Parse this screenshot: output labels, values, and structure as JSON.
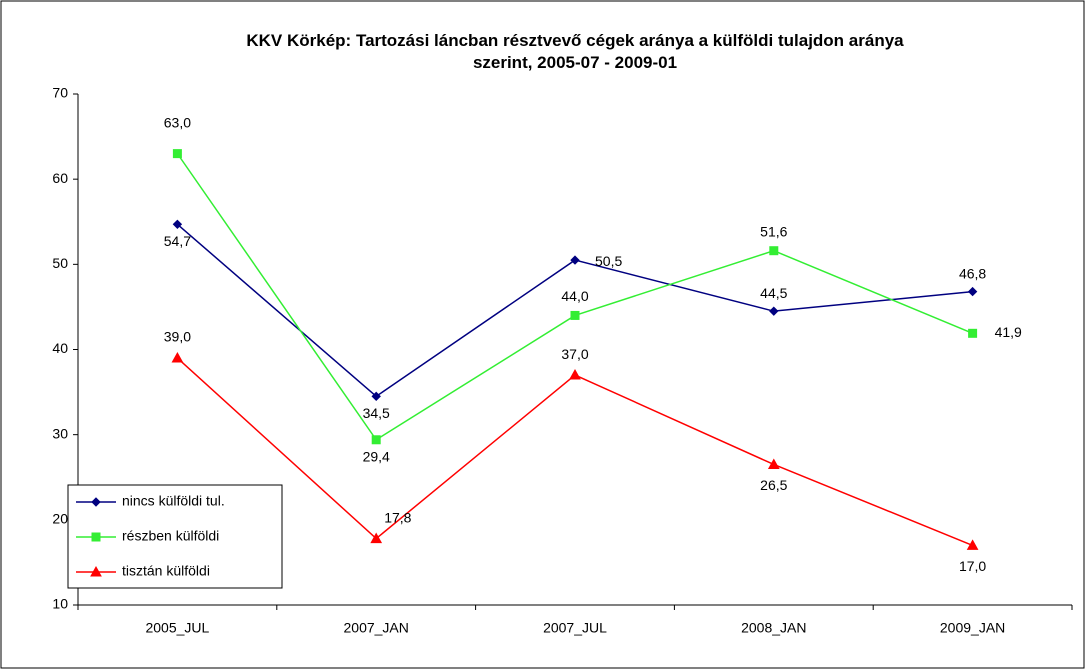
{
  "chart_data": {
    "type": "line",
    "title": "KKV Körkép: Tartozási láncban résztvevő cégek aránya a külföldi tulajdon aránya szerint, 2005-07 - 2009-01",
    "categories": [
      "2005_JUL",
      "2007_JAN",
      "2007_JUL",
      "2008_JAN",
      "2009_JAN"
    ],
    "series": [
      {
        "name": "nincs külföldi tul.",
        "color": "#000080",
        "marker": "diamond",
        "values": [
          54.7,
          34.5,
          50.5,
          44.5,
          46.8
        ],
        "value_labels": [
          "54,7",
          "34,5",
          "50,5",
          "44,5",
          "46,8"
        ]
      },
      {
        "name": "részben külföldi",
        "color": "#33ee33",
        "marker": "square",
        "values": [
          63.0,
          29.4,
          44.0,
          51.6,
          41.9
        ],
        "value_labels": [
          "63,0",
          "29,4",
          "44,0",
          "51,6",
          "41,9"
        ]
      },
      {
        "name": "tisztán külföldi",
        "color": "#ff0000",
        "marker": "triangle",
        "values": [
          39.0,
          17.8,
          37.0,
          26.5,
          17.0
        ],
        "value_labels": [
          "39,0",
          "17,8",
          "37,0",
          "26,5",
          "17,0"
        ]
      }
    ],
    "ylim": [
      10,
      70
    ],
    "yticks": [
      10,
      20,
      30,
      40,
      50,
      60,
      70
    ],
    "grid": false,
    "legend": "lower left"
  }
}
